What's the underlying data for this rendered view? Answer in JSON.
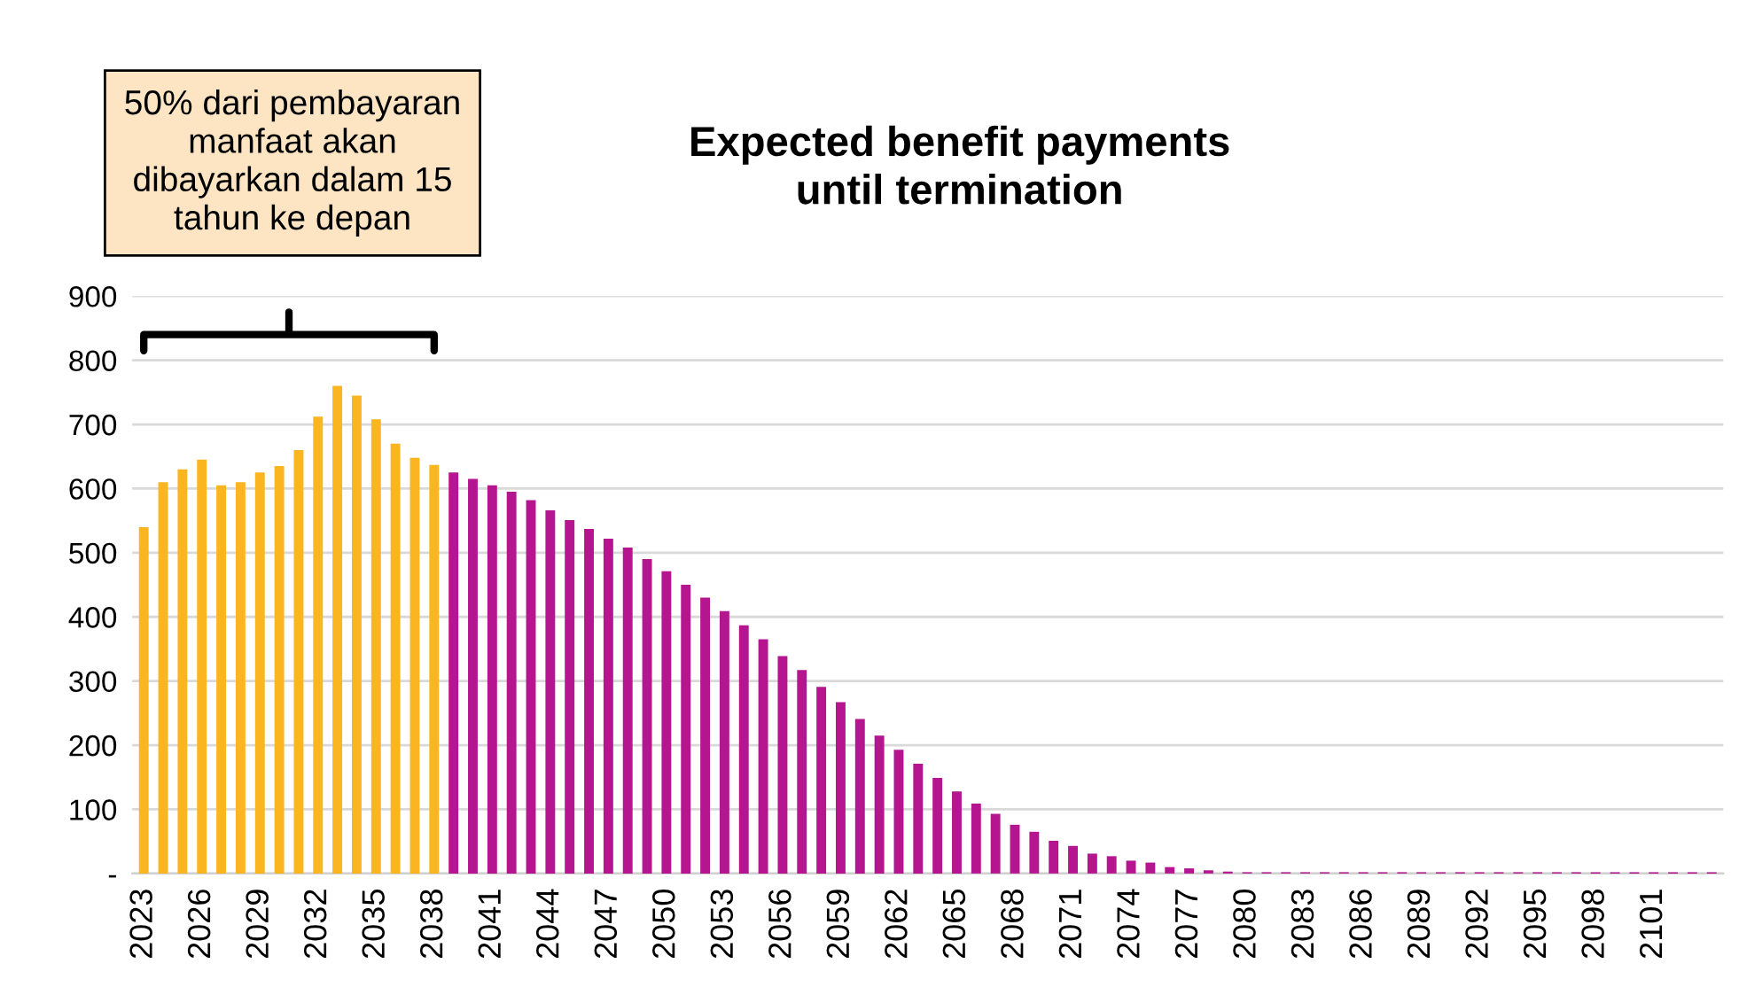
{
  "chart_data": {
    "type": "bar",
    "title": "Expected benefit payments\nuntil termination",
    "categories": [
      "2023",
      null,
      null,
      "2026",
      null,
      null,
      "2029",
      null,
      null,
      "2032",
      null,
      null,
      "2035",
      null,
      null,
      "2038",
      null,
      null,
      "2041",
      null,
      null,
      "2044",
      null,
      null,
      "2047",
      null,
      null,
      "2050",
      null,
      null,
      "2053",
      null,
      null,
      "2056",
      null,
      null,
      "2059",
      null,
      null,
      "2062",
      null,
      null,
      "2065",
      null,
      null,
      "2068",
      null,
      null,
      "2071",
      null,
      null,
      "2074",
      null,
      null,
      "2077",
      null,
      null,
      "2080",
      null,
      null,
      "2083",
      null,
      null,
      "2086",
      null,
      null,
      "2089",
      null,
      null,
      "2092",
      null,
      null,
      "2095",
      null,
      null,
      "2098",
      null,
      null,
      "2101",
      null,
      null,
      null
    ],
    "values": [
      540,
      610,
      630,
      645,
      605,
      610,
      625,
      635,
      660,
      712,
      760,
      745,
      708,
      670,
      648,
      637,
      625,
      615,
      605,
      595,
      582,
      566,
      551,
      537,
      522,
      508,
      490,
      471,
      450,
      430,
      409,
      387,
      365,
      339,
      317,
      291,
      267,
      241,
      215,
      193,
      171,
      149,
      128,
      109,
      93,
      76,
      65,
      51,
      43,
      31,
      27,
      20,
      17,
      10,
      8,
      5,
      3,
      2,
      2,
      2,
      2,
      2,
      2,
      2,
      2,
      2,
      2,
      2,
      2,
      2,
      2,
      2,
      2,
      2,
      2,
      2,
      2,
      2,
      2,
      2,
      2,
      2
    ],
    "colors": [
      "#fbb521",
      "#fbb521",
      "#fbb521",
      "#fbb521",
      "#fbb521",
      "#fbb521",
      "#fbb521",
      "#fbb521",
      "#fbb521",
      "#fbb521",
      "#fbb521",
      "#fbb521",
      "#fbb521",
      "#fbb521",
      "#fbb521",
      "#fbb521",
      "#b5168f",
      "#b5168f",
      "#b5168f",
      "#b5168f",
      "#b5168f",
      "#b5168f",
      "#b5168f",
      "#b5168f",
      "#b5168f",
      "#b5168f",
      "#b5168f",
      "#b5168f",
      "#b5168f",
      "#b5168f",
      "#b5168f",
      "#b5168f",
      "#b5168f",
      "#b5168f",
      "#b5168f",
      "#b5168f",
      "#b5168f",
      "#b5168f",
      "#b5168f",
      "#b5168f",
      "#b5168f",
      "#b5168f",
      "#b5168f",
      "#b5168f",
      "#b5168f",
      "#b5168f",
      "#b5168f",
      "#b5168f",
      "#b5168f",
      "#b5168f",
      "#b5168f",
      "#b5168f",
      "#b5168f",
      "#b5168f",
      "#b5168f",
      "#b5168f",
      "#b5168f",
      "#b5168f",
      "#b5168f",
      "#b5168f",
      "#b5168f",
      "#b5168f",
      "#b5168f",
      "#b5168f",
      "#b5168f",
      "#b5168f",
      "#b5168f",
      "#b5168f",
      "#b5168f",
      "#b5168f",
      "#b5168f",
      "#b5168f",
      "#b5168f",
      "#b5168f",
      "#b5168f",
      "#b5168f",
      "#b5168f",
      "#b5168f",
      "#b5168f",
      "#b5168f",
      "#b5168f",
      "#b5168f"
    ],
    "ylim": [
      0,
      900
    ],
    "yticks": [
      {
        "value": 0,
        "label": "-"
      },
      100,
      200,
      300,
      400,
      500,
      600,
      700,
      800,
      900
    ],
    "grid": "y",
    "annotations": [
      "50% dari pembayaran\nmanfaat akan\ndibayarkan dalam 15\ntahun ke depan"
    ]
  }
}
